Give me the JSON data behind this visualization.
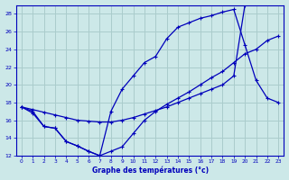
{
  "xlabel": "Graphe des températures (°c)",
  "xlim": [
    -0.5,
    23.5
  ],
  "ylim": [
    12,
    29
  ],
  "yticks": [
    12,
    14,
    16,
    18,
    20,
    22,
    24,
    26,
    28
  ],
  "xticks": [
    0,
    1,
    2,
    3,
    4,
    5,
    6,
    7,
    8,
    9,
    10,
    11,
    12,
    13,
    14,
    15,
    16,
    17,
    18,
    19,
    20,
    21,
    22,
    23
  ],
  "bg_color": "#cce8e8",
  "grid_color": "#aacccc",
  "line_color": "#0000bb",
  "line1_x": [
    0,
    1,
    2,
    3,
    4,
    5,
    6,
    7,
    8,
    9,
    10,
    11,
    12,
    13,
    14,
    15,
    16,
    17,
    18,
    19,
    20
  ],
  "line1_y": [
    17.5,
    17.2,
    16.9,
    16.6,
    16.3,
    16.0,
    15.9,
    15.8,
    15.8,
    16.0,
    16.3,
    16.7,
    17.1,
    17.5,
    18.0,
    18.5,
    19.0,
    19.5,
    20.0,
    21.0,
    29.0
  ],
  "line2_x": [
    0,
    1,
    2,
    3,
    4,
    5,
    6,
    7,
    8,
    9,
    10,
    11,
    12,
    13,
    14,
    15,
    16,
    17,
    18,
    19,
    20,
    21,
    22,
    23
  ],
  "line2_y": [
    17.5,
    17.0,
    15.3,
    15.1,
    13.6,
    13.1,
    12.5,
    12.0,
    17.0,
    19.5,
    21.0,
    22.5,
    23.2,
    25.2,
    26.5,
    27.0,
    27.5,
    27.8,
    28.2,
    28.5,
    24.5,
    20.5,
    18.5,
    18.0
  ],
  "line3_x": [
    0,
    1,
    2,
    3,
    4,
    5,
    6,
    7,
    8,
    9,
    10,
    11,
    12,
    13,
    14,
    15,
    16,
    17,
    18,
    19,
    20,
    21,
    22,
    23
  ],
  "line3_y": [
    17.5,
    16.8,
    15.3,
    15.1,
    13.6,
    13.1,
    12.5,
    12.0,
    12.5,
    13.0,
    14.5,
    16.0,
    17.0,
    17.8,
    18.5,
    19.2,
    20.0,
    20.8,
    21.5,
    22.5,
    23.5,
    24.0,
    25.0,
    25.5
  ]
}
